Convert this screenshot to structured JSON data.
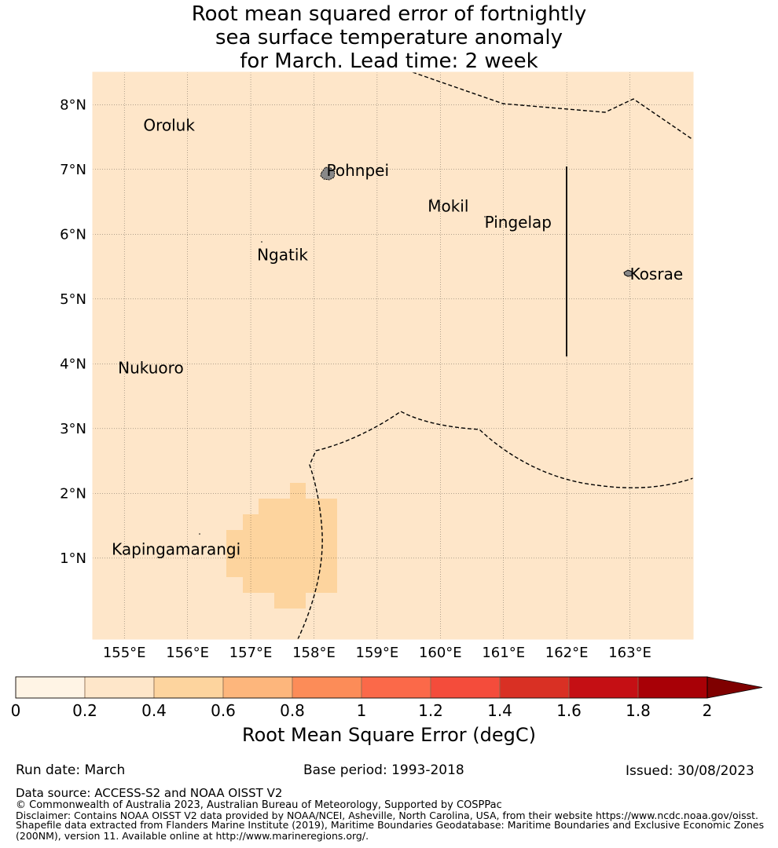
{
  "title": {
    "line1": "Root mean squared error of fortnightly",
    "line2": "sea surface temperature anomaly",
    "line3": "for March. Lead time: 2 week"
  },
  "map": {
    "lon_range": [
      154.5,
      164.0
    ],
    "lat_range": [
      -0.25,
      8.5
    ],
    "x_ticks": [
      "155°E",
      "156°E",
      "157°E",
      "158°E",
      "159°E",
      "160°E",
      "161°E",
      "162°E",
      "163°E"
    ],
    "y_ticks": [
      "1°N",
      "2°N",
      "3°N",
      "4°N",
      "5°N",
      "6°N",
      "7°N",
      "8°N"
    ],
    "background_color": "#fee6c9",
    "highlight_color": "#fdd49e",
    "places": [
      {
        "name": "Oroluk",
        "lon": 155.3,
        "lat": 7.6
      },
      {
        "name": "Pohnpei",
        "lon": 158.2,
        "lat": 6.9
      },
      {
        "name": "Mokil",
        "lon": 159.8,
        "lat": 6.35
      },
      {
        "name": "Pingelap",
        "lon": 160.7,
        "lat": 6.1
      },
      {
        "name": "Ngatik",
        "lon": 157.1,
        "lat": 5.6
      },
      {
        "name": "Kosrae",
        "lon": 163.0,
        "lat": 5.3
      },
      {
        "name": "Nukuoro",
        "lon": 154.9,
        "lat": 3.85
      },
      {
        "name": "Kapingamarangi",
        "lon": 154.8,
        "lat": 1.05
      }
    ]
  },
  "colorbar": {
    "ticks": [
      "0",
      "0.2",
      "0.4",
      "0.6",
      "0.8",
      "1",
      "1.2",
      "1.4",
      "1.6",
      "1.8",
      "2"
    ],
    "colors": [
      "#fff4e5",
      "#fee6c9",
      "#fdd49e",
      "#fdb67c",
      "#fc8c58",
      "#fb6949",
      "#f44c3b",
      "#d93024",
      "#c50f14",
      "#a80006"
    ],
    "extend_color": "#7f0000",
    "label": "Root Mean Square Error (degC)"
  },
  "footer": {
    "run_date": "Run date: March",
    "base_period": "Base period: 1993-2018",
    "issued": "Issued: 30/08/2023",
    "data_source": "Data source: ACCESS-S2 and NOAA OISST V2",
    "copyright": "© Commonwealth of Australia 2023, Australian Bureau of Meteorology, Supported by COSPPac",
    "disclaimer1": "Disclaimer: Contains NOAA OISST V2 data provided by NOAA/NCEI, Asheville, North Carolina, USA, from their website https://www.ncdc.noaa.gov/oisst.",
    "disclaimer2": "Shapefile data extracted from Flanders Marine Institute (2019), Maritime Boundaries Geodatabase: Maritime Boundaries and Exclusive Economic Zones",
    "disclaimer3": "(200NM), version 11. Available online at http://www.marineregions.org/."
  }
}
